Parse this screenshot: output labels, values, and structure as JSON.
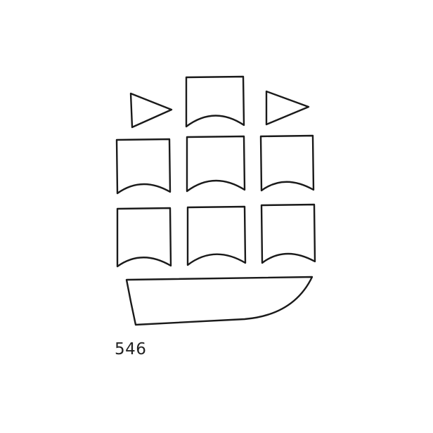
{
  "figure": {
    "number": "546",
    "stroke_color": "#1a1a1a",
    "text_color": "#222222",
    "background_color": "#ffffff"
  }
}
